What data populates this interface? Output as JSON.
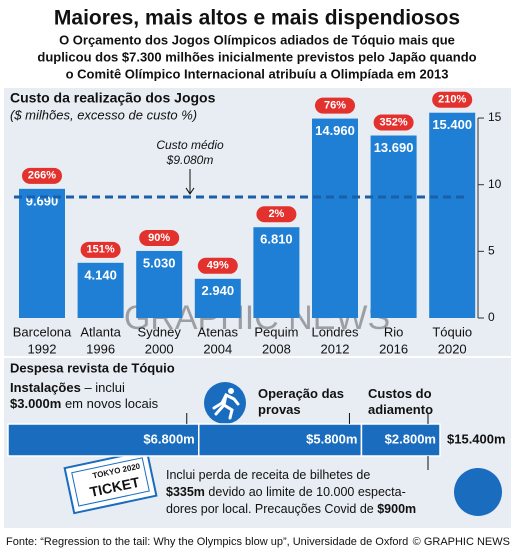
{
  "header": {
    "title": "Maiores, mais altos e mais dispendiosos",
    "subtitle": [
      "O Orçamento dos Jogos Olímpicos adiados de Tóquio mais que",
      "duplicou dos $7.300 milhões inicialmente previstos pelo Japão quando",
      "o Comitê Olímpico Internacional atribuíu a Olimpíada em 2013"
    ]
  },
  "chart_data": [
    {
      "type": "bar",
      "title": "Custo da realização dos Jogos",
      "subtitle": "($ milhões, excesso de custo %)",
      "categories": [
        "Barcelona",
        "Atlanta",
        "Sydney",
        "Atenas",
        "Pequim",
        "Londres",
        "Rio",
        "Tóquio"
      ],
      "years": [
        "1992",
        "1996",
        "2000",
        "2004",
        "2008",
        "2012",
        "2016",
        "2020"
      ],
      "values": [
        9.69,
        4.14,
        5.03,
        2.94,
        6.81,
        14.96,
        13.69,
        15.4
      ],
      "value_labels": [
        "9.690",
        "4.140",
        "5.030",
        "2.940",
        "6.810",
        "14.960",
        "13.690",
        "15.400"
      ],
      "overrun_values": [
        266,
        151,
        90,
        49,
        2,
        76,
        352,
        210
      ],
      "overrun_labels": [
        "266%",
        "151%",
        "90%",
        "49%",
        "2%",
        "76%",
        "352%",
        "210%"
      ],
      "color": "#1e7fd4",
      "overrun_color": "#e3312d",
      "ylim": [
        0,
        17
      ],
      "yticks": [
        0,
        5,
        10,
        15
      ],
      "average": {
        "value": 9.08,
        "label": [
          "Custo médio",
          "$9.080m"
        ]
      }
    },
    {
      "type": "stacked-bar",
      "title": "Despesa revista de Tóquio",
      "series": [
        {
          "name": [
            {
              "bold": "Instalações",
              "text": " – inclui"
            },
            {
              "bold": "$3.000m",
              "text": " em novos locais"
            }
          ],
          "values": [
            6800
          ],
          "value_labels": [
            "$6.800m"
          ]
        },
        {
          "name": [
            {
              "bold": "Operação das"
            },
            {
              "bold": "provas"
            }
          ],
          "values": [
            5800
          ],
          "value_labels": [
            "$5.800m"
          ]
        },
        {
          "name": [
            {
              "bold": "Custos do"
            },
            {
              "bold": "adiamento"
            }
          ],
          "values": [
            2800
          ],
          "value_labels": [
            "$2.800m"
          ]
        }
      ],
      "total": 15400,
      "total_label": "$15.400m",
      "color": "#1a6cbf",
      "note": [
        {
          "text": "Inclui perda de receita de bilhetes de"
        },
        {
          "bold": "$335m",
          "text": " devido ao limite de 10.000 especta-"
        },
        {
          "text": "dores por local. Precauções Covid de "
        },
        {
          "bold": "$900m"
        }
      ]
    }
  ],
  "illustration": {
    "ticket": [
      "TOKYO 2020",
      "TICKET"
    ]
  },
  "watermark": "GRAPHIC NEWS",
  "footer": {
    "source": "Fonte: “Regression to the tail: Why the Olympics blow up”, Universidade de Oxford",
    "credit": "© GRAPHIC NEWS"
  }
}
